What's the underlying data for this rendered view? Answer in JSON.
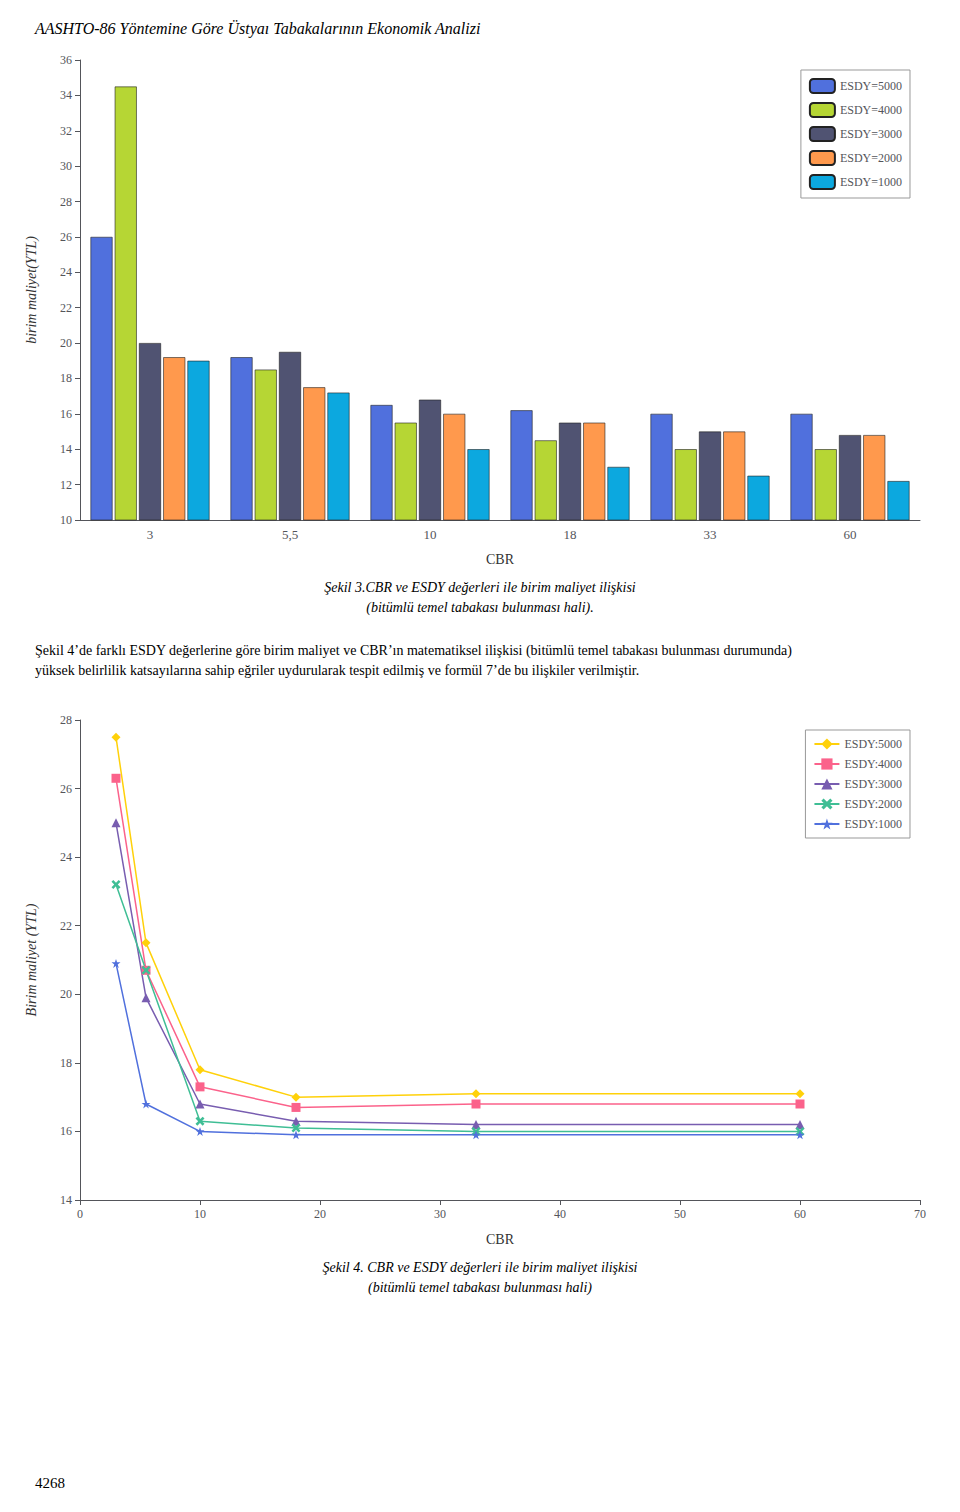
{
  "title": "AASHTO-86 Yöntemine Göre Üstyaı Tabakalarının Ekonomik Analizi",
  "annotations": [
    "Şekil 4’de farklı ESDY değerlerine göre birim maliyet ve CBR’ın matematiksel ilişkisi (bitümlü temel tabakası bulunması durumunda) yüksek belirlilik katsayılarına sahip eğriler uydurularak tespit edilmiş ve formül 7’de bu ilişkiler verilmiştir.",
    "4268"
  ],
  "chart_data": [
    {
      "type": "bar",
      "title": "Şekil 3.CBR ve ESDY değerleri ile birim maliyet ilişkisi",
      "subtitle": "(bitümlü temel tabakası bulunması hali).",
      "xlabel": "CBR",
      "ylabel": "birim maliyet(YTL)",
      "categories": [
        "3",
        "5,5",
        "10",
        "18",
        "33",
        "60"
      ],
      "series": [
        {
          "name": "ESDY=5000",
          "values": [
            26.0,
            19.2,
            16.5,
            16.2,
            16.0,
            16.0
          ]
        },
        {
          "name": "ESDY=4000",
          "values": [
            34.5,
            18.5,
            15.5,
            14.5,
            14.0,
            14.0
          ]
        },
        {
          "name": "ESDY=3000",
          "values": [
            20.0,
            19.5,
            16.8,
            15.5,
            15.0,
            14.8
          ]
        },
        {
          "name": "ESDY=2000",
          "values": [
            19.2,
            17.5,
            16.0,
            15.5,
            15.0,
            14.8
          ]
        },
        {
          "name": "ESDY=1000",
          "values": [
            19.0,
            17.2,
            14.0,
            13.0,
            12.5,
            12.2
          ]
        }
      ],
      "ylim": [
        10,
        36
      ],
      "yticks": [
        10,
        12,
        14,
        16,
        18,
        20,
        22,
        24,
        26,
        28,
        30,
        32,
        34,
        36
      ],
      "grid": false,
      "legend": "upper right"
    },
    {
      "type": "line",
      "title": "Şekil 4. CBR ve ESDY değerleri ile birim maliyet ilişkisi",
      "subtitle": "(bitümlü temel tabakası bulunması hali)",
      "xlabel": "CBR",
      "ylabel": "Birim maliyet (YTL)",
      "x": [
        3,
        5.5,
        10,
        18,
        33,
        60
      ],
      "series": [
        {
          "name": "ESDY:5000",
          "values": [
            27.5,
            21.5,
            17.8,
            17.0,
            17.1,
            17.1
          ],
          "marker": "diamond"
        },
        {
          "name": "ESDY:4000",
          "values": [
            26.3,
            20.7,
            17.3,
            16.7,
            16.8,
            16.8
          ],
          "marker": "square"
        },
        {
          "name": "ESDY:3000",
          "values": [
            25.0,
            19.9,
            16.8,
            16.3,
            16.2,
            16.2
          ],
          "marker": "triangle"
        },
        {
          "name": "ESDY:2000",
          "values": [
            23.2,
            20.7,
            16.3,
            16.1,
            16.0,
            16.0
          ],
          "marker": "x"
        },
        {
          "name": "ESDY:1000",
          "values": [
            20.9,
            16.8,
            16.0,
            15.9,
            15.9,
            15.9
          ],
          "marker": "star"
        }
      ],
      "xlim": [
        0,
        70
      ],
      "xticks": [
        0,
        10,
        20,
        30,
        40,
        50,
        60,
        70
      ],
      "ylim": [
        14,
        28
      ],
      "yticks": [
        14,
        16,
        18,
        20,
        22,
        24,
        26,
        28
      ],
      "grid": false,
      "legend": "upper right"
    }
  ]
}
